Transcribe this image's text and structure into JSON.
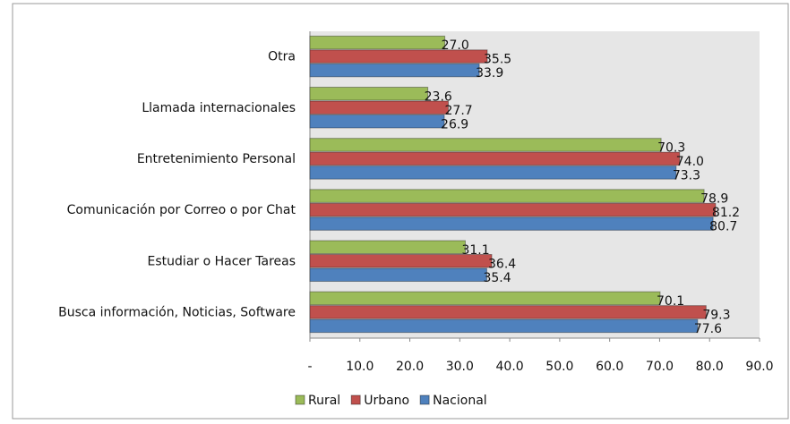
{
  "chart_data": {
    "type": "bar",
    "orientation": "horizontal",
    "categories": [
      "Otra",
      "Llamada internacionales",
      "Entretenimiento Personal",
      "Comunicación por Correo o por Chat",
      "Estudiar o Hacer Tareas",
      "Busca información, Noticias, Software"
    ],
    "series": [
      {
        "name": "Rural",
        "color": "#9bbb59",
        "values": [
          27.0,
          23.6,
          70.3,
          78.9,
          31.1,
          70.1
        ],
        "value_labels": [
          "27.0",
          "23.6",
          "70.3",
          "78.9",
          "31.1",
          "70.1"
        ]
      },
      {
        "name": "Urbano",
        "color": "#c0504d",
        "values": [
          35.5,
          27.7,
          74.0,
          81.2,
          36.4,
          79.3
        ],
        "value_labels": [
          "35.5",
          "27.7",
          "74.0",
          "81.2",
          "36.4",
          "79.3"
        ]
      },
      {
        "name": "Nacional",
        "color": "#4f81bd",
        "values": [
          33.9,
          26.9,
          73.3,
          80.7,
          35.4,
          77.6
        ],
        "value_labels": [
          "33.9",
          "26.9",
          "73.3",
          "80.7",
          "35.4",
          "77.6"
        ]
      }
    ],
    "xlim": [
      0,
      90
    ],
    "xticks": [
      {
        "value": 0,
        "label": "-"
      },
      {
        "value": 10,
        "label": "10.0"
      },
      {
        "value": 20,
        "label": "20.0"
      },
      {
        "value": 30,
        "label": "30.0"
      },
      {
        "value": 40,
        "label": "40.0"
      },
      {
        "value": 50,
        "label": "50.0"
      },
      {
        "value": 60,
        "label": "60.0"
      },
      {
        "value": 70,
        "label": "70.0"
      },
      {
        "value": 80,
        "label": "80.0"
      },
      {
        "value": 90,
        "label": "90.0"
      }
    ],
    "legend": "bottom"
  }
}
